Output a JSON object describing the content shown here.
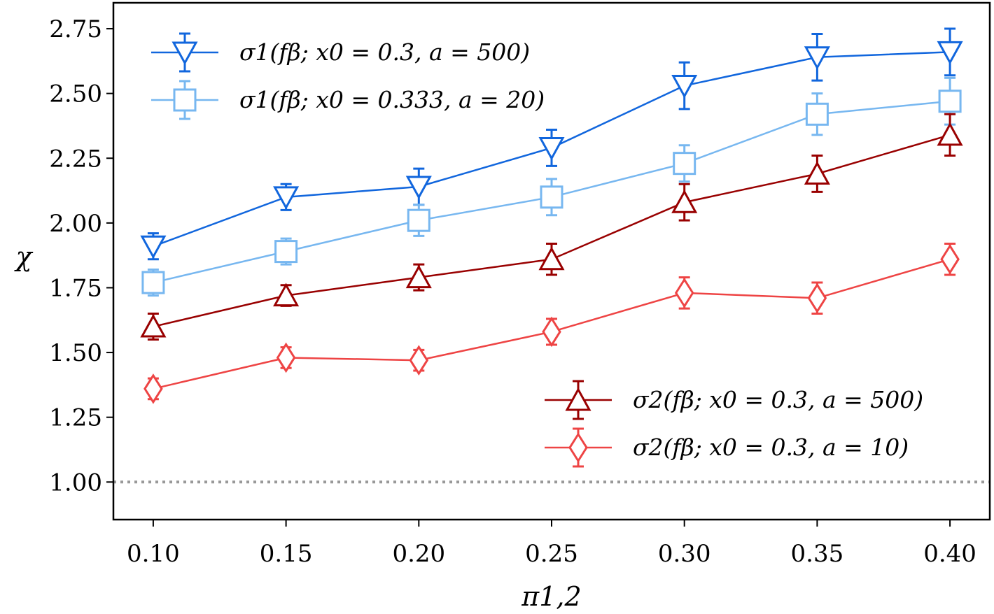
{
  "chart_data": {
    "type": "line",
    "xlabel": "π1,2",
    "ylabel": "χ",
    "x": [
      0.1,
      0.15,
      0.2,
      0.25,
      0.3,
      0.35,
      0.4
    ],
    "x_tick_labels": [
      "0.10",
      "0.15",
      "0.20",
      "0.25",
      "0.30",
      "0.35",
      "0.40"
    ],
    "y_ticks": [
      1.0,
      1.25,
      1.5,
      1.75,
      2.0,
      2.25,
      2.5,
      2.75
    ],
    "y_tick_labels": [
      "1.00",
      "1.25",
      "1.50",
      "1.75",
      "2.00",
      "2.25",
      "2.50",
      "2.75"
    ],
    "xlim": [
      0.085,
      0.415
    ],
    "ylim": [
      0.855,
      2.85
    ],
    "grid": false,
    "reference_line": {
      "y": 1.0,
      "style": "dotted",
      "color": "#999999"
    },
    "series": [
      {
        "name": "σ1(fβ; x0 = 0.3, a = 500)",
        "marker": "triangle-down",
        "color": "#1166DD",
        "values": [
          1.91,
          2.1,
          2.14,
          2.29,
          2.53,
          2.64,
          2.66
        ],
        "errors": [
          0.05,
          0.05,
          0.07,
          0.07,
          0.09,
          0.09,
          0.09
        ],
        "legend_group": "top-left"
      },
      {
        "name": "σ1(fβ; x0 = 0.333, a = 20)",
        "marker": "square",
        "color": "#77B7F0",
        "values": [
          1.77,
          1.89,
          2.01,
          2.1,
          2.23,
          2.42,
          2.47
        ],
        "errors": [
          0.05,
          0.05,
          0.06,
          0.07,
          0.07,
          0.08,
          0.09
        ],
        "legend_group": "top-left"
      },
      {
        "name": "σ2(fβ; x0 = 0.3, a = 500)",
        "marker": "triangle-up",
        "color": "#990000",
        "values": [
          1.6,
          1.72,
          1.79,
          1.86,
          2.08,
          2.19,
          2.34
        ],
        "errors": [
          0.05,
          0.04,
          0.05,
          0.06,
          0.07,
          0.07,
          0.08
        ],
        "legend_group": "bottom-right"
      },
      {
        "name": "σ2(fβ; x0 = 0.3, a = 10)",
        "marker": "diamond",
        "color": "#EE4444",
        "values": [
          1.36,
          1.48,
          1.47,
          1.58,
          1.73,
          1.71,
          1.86
        ],
        "errors": [
          0.04,
          0.04,
          0.04,
          0.05,
          0.06,
          0.06,
          0.06
        ],
        "legend_group": "bottom-right"
      }
    ]
  }
}
